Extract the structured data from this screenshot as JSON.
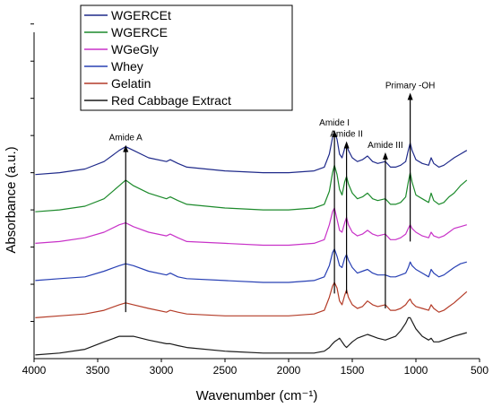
{
  "chart_data": {
    "type": "line",
    "title": "",
    "xlabel": "Wavenumber (cm⁻¹)",
    "ylabel": "Absorbance (a.u.)",
    "x_reversed": true,
    "xlim": [
      4000,
      500
    ],
    "ylim": [
      0,
      19
    ],
    "x_ticks": [
      "4000",
      "3500",
      "3000",
      "2500",
      "2000",
      "1500",
      "1000",
      "500"
    ],
    "grid": false,
    "legend_position": "top-left",
    "series": [
      {
        "name": "WGERCEt",
        "color": "#1f2a8a",
        "x": [
          3990,
          3800,
          3600,
          3450,
          3330,
          3280,
          3220,
          3100,
          2960,
          2930,
          2870,
          2800,
          2500,
          2200,
          2000,
          1800,
          1720,
          1680,
          1655,
          1640,
          1620,
          1600,
          1580,
          1560,
          1545,
          1530,
          1500,
          1460,
          1420,
          1380,
          1340,
          1300,
          1240,
          1200,
          1160,
          1120,
          1080,
          1060,
          1045,
          1030,
          1000,
          950,
          900,
          880,
          860,
          820,
          780,
          740,
          700,
          650,
          600
        ],
        "y": [
          9.9,
          10.0,
          10.2,
          10.6,
          11.2,
          11.4,
          11.2,
          10.8,
          10.6,
          10.7,
          10.5,
          10.3,
          10.1,
          10.0,
          10.0,
          10.1,
          10.3,
          11.0,
          11.9,
          12.2,
          11.8,
          11.0,
          10.8,
          11.3,
          11.5,
          11.2,
          10.8,
          10.6,
          10.7,
          10.9,
          10.6,
          10.5,
          10.6,
          10.3,
          10.3,
          10.4,
          10.6,
          11.2,
          11.6,
          11.2,
          10.7,
          10.5,
          10.4,
          10.8,
          10.5,
          10.3,
          10.4,
          10.6,
          10.8,
          11.0,
          11.2
        ]
      },
      {
        "name": "WGERCE",
        "color": "#1c8a2b",
        "x": [
          3990,
          3800,
          3600,
          3450,
          3330,
          3280,
          3220,
          3100,
          2960,
          2930,
          2870,
          2800,
          2500,
          2200,
          2000,
          1800,
          1720,
          1680,
          1655,
          1640,
          1620,
          1600,
          1580,
          1560,
          1545,
          1530,
          1500,
          1460,
          1420,
          1380,
          1340,
          1300,
          1240,
          1200,
          1160,
          1120,
          1080,
          1060,
          1045,
          1030,
          1000,
          950,
          900,
          880,
          860,
          820,
          780,
          740,
          700,
          650,
          600
        ],
        "y": [
          7.9,
          8.0,
          8.2,
          8.6,
          9.3,
          9.6,
          9.3,
          8.9,
          8.6,
          8.7,
          8.5,
          8.3,
          8.1,
          8.0,
          8.0,
          8.1,
          8.3,
          9.0,
          10.0,
          10.4,
          9.9,
          9.1,
          8.8,
          9.5,
          9.8,
          9.4,
          8.9,
          8.6,
          8.7,
          8.9,
          8.6,
          8.5,
          8.6,
          8.3,
          8.3,
          8.4,
          8.7,
          9.5,
          10.0,
          9.5,
          8.8,
          8.6,
          8.4,
          8.9,
          8.5,
          8.3,
          8.4,
          8.7,
          8.9,
          9.3,
          9.6
        ]
      },
      {
        "name": "WGeGly",
        "color": "#c832c8",
        "x": [
          3990,
          3800,
          3600,
          3450,
          3330,
          3280,
          3220,
          3100,
          2960,
          2930,
          2870,
          2800,
          2500,
          2200,
          2000,
          1800,
          1720,
          1680,
          1655,
          1640,
          1620,
          1600,
          1580,
          1560,
          1545,
          1530,
          1500,
          1460,
          1420,
          1380,
          1340,
          1300,
          1240,
          1200,
          1160,
          1120,
          1080,
          1060,
          1045,
          1030,
          1000,
          950,
          900,
          880,
          860,
          820,
          780,
          740,
          700,
          650,
          600
        ],
        "y": [
          6.2,
          6.3,
          6.5,
          6.8,
          7.2,
          7.3,
          7.1,
          6.8,
          6.6,
          6.7,
          6.5,
          6.3,
          6.2,
          6.1,
          6.1,
          6.2,
          6.4,
          7.2,
          7.9,
          8.1,
          7.5,
          6.9,
          6.8,
          7.3,
          7.6,
          7.2,
          6.8,
          6.6,
          6.7,
          6.9,
          6.7,
          6.6,
          6.7,
          6.4,
          6.4,
          6.5,
          6.7,
          7.0,
          7.2,
          7.0,
          6.8,
          6.6,
          6.5,
          6.8,
          6.6,
          6.5,
          6.6,
          6.8,
          7.0,
          7.1,
          7.2
        ]
      },
      {
        "name": "Whey",
        "color": "#2840b4",
        "x": [
          3990,
          3800,
          3600,
          3450,
          3330,
          3280,
          3220,
          3100,
          2960,
          2930,
          2870,
          2800,
          2500,
          2200,
          2000,
          1800,
          1720,
          1680,
          1655,
          1640,
          1620,
          1600,
          1580,
          1560,
          1545,
          1530,
          1500,
          1460,
          1420,
          1380,
          1340,
          1300,
          1240,
          1200,
          1160,
          1120,
          1080,
          1060,
          1045,
          1030,
          1000,
          950,
          900,
          880,
          860,
          820,
          780,
          740,
          700,
          650,
          600
        ],
        "y": [
          4.2,
          4.3,
          4.4,
          4.7,
          5.0,
          5.1,
          5.0,
          4.7,
          4.5,
          4.6,
          4.4,
          4.3,
          4.2,
          4.1,
          4.1,
          4.2,
          4.4,
          5.0,
          5.7,
          5.9,
          5.5,
          5.0,
          4.9,
          5.4,
          5.6,
          5.3,
          4.9,
          4.6,
          4.7,
          4.8,
          4.6,
          4.5,
          4.5,
          4.4,
          4.4,
          4.5,
          4.6,
          4.9,
          5.2,
          5.0,
          4.8,
          4.6,
          4.4,
          4.8,
          4.6,
          4.4,
          4.5,
          4.7,
          4.9,
          5.1,
          5.2
        ]
      },
      {
        "name": "Gelatin",
        "color": "#b43c28",
        "x": [
          3990,
          3800,
          3600,
          3450,
          3330,
          3280,
          3220,
          3100,
          2960,
          2930,
          2870,
          2800,
          2500,
          2200,
          2000,
          1800,
          1720,
          1680,
          1655,
          1640,
          1620,
          1600,
          1580,
          1560,
          1545,
          1530,
          1500,
          1460,
          1420,
          1380,
          1340,
          1300,
          1240,
          1200,
          1160,
          1120,
          1080,
          1060,
          1045,
          1030,
          1000,
          950,
          900,
          880,
          860,
          820,
          780,
          740,
          700,
          650,
          600
        ],
        "y": [
          2.2,
          2.3,
          2.4,
          2.6,
          2.9,
          3.0,
          2.9,
          2.7,
          2.5,
          2.6,
          2.5,
          2.4,
          2.3,
          2.3,
          2.3,
          2.4,
          2.6,
          3.3,
          3.9,
          4.1,
          3.8,
          3.1,
          2.9,
          3.4,
          3.7,
          3.3,
          2.9,
          2.7,
          2.8,
          3.1,
          2.9,
          2.8,
          2.9,
          2.6,
          2.6,
          2.7,
          2.9,
          3.1,
          3.2,
          3.0,
          2.8,
          2.7,
          2.6,
          2.9,
          2.7,
          2.5,
          2.6,
          2.8,
          3.0,
          3.3,
          3.6
        ]
      },
      {
        "name": "Red Cabbage Extract",
        "color": "#1a1a1a",
        "x": [
          3990,
          3800,
          3600,
          3450,
          3330,
          3280,
          3220,
          3100,
          2960,
          2930,
          2870,
          2800,
          2500,
          2200,
          2000,
          1800,
          1720,
          1680,
          1655,
          1640,
          1620,
          1600,
          1580,
          1560,
          1545,
          1530,
          1500,
          1460,
          1420,
          1380,
          1340,
          1300,
          1240,
          1200,
          1160,
          1120,
          1080,
          1060,
          1045,
          1030,
          1000,
          950,
          900,
          880,
          860,
          820,
          780,
          740,
          700,
          650,
          600
        ],
        "y": [
          0.2,
          0.3,
          0.5,
          0.9,
          1.2,
          1.2,
          1.2,
          1.0,
          0.8,
          0.8,
          0.7,
          0.6,
          0.4,
          0.3,
          0.3,
          0.3,
          0.4,
          0.6,
          0.8,
          0.9,
          1.0,
          1.1,
          0.9,
          0.7,
          0.6,
          0.7,
          0.9,
          1.1,
          1.2,
          1.3,
          1.2,
          1.1,
          1.0,
          1.1,
          1.2,
          1.5,
          1.9,
          2.2,
          2.2,
          2.0,
          1.6,
          1.2,
          1.0,
          1.1,
          0.9,
          0.9,
          1.0,
          1.1,
          1.2,
          1.3,
          1.4
        ]
      }
    ],
    "annotations": [
      {
        "label": "Amide A",
        "x": 3280,
        "y_from": 2.5,
        "y_to": 11.4
      },
      {
        "label": "Amide I",
        "x": 1640,
        "y_from": 3.5,
        "y_to": 12.2
      },
      {
        "label": "Amide II",
        "x": 1545,
        "y_from": 3.5,
        "y_to": 11.6
      },
      {
        "label": "Amide III",
        "x": 1240,
        "y_from": 2.7,
        "y_to": 11.0
      },
      {
        "label": "Primary -OH",
        "x": 1045,
        "y_from": 6.3,
        "y_to": 14.2
      }
    ]
  }
}
